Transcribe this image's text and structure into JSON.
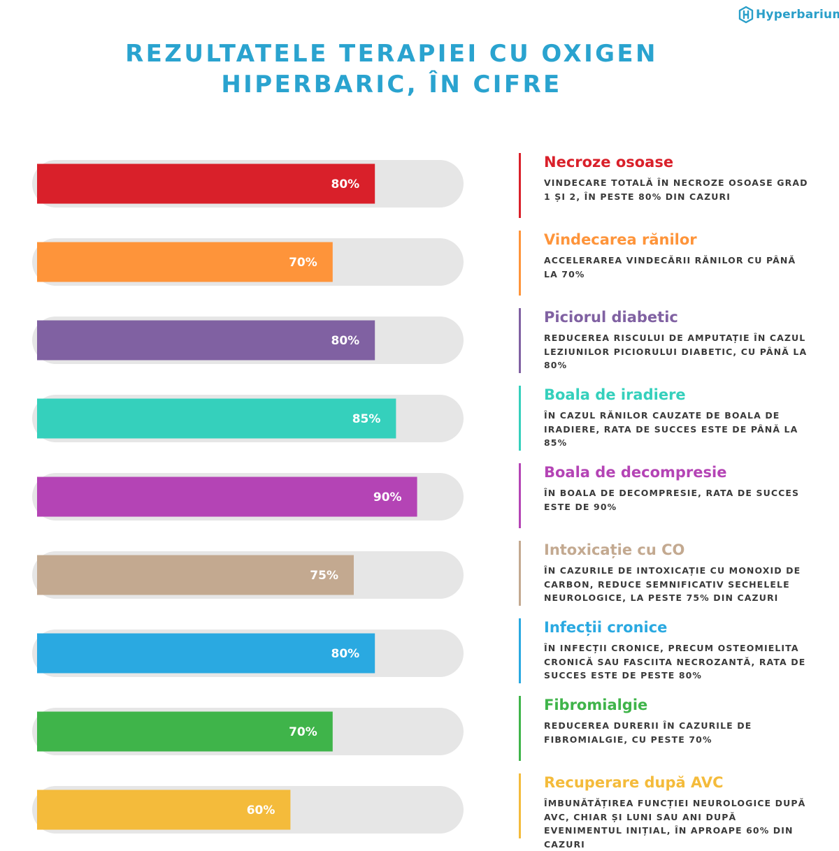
{
  "brand": {
    "name": "Hyperbarium",
    "color": "#2a9fc9"
  },
  "title_lines": [
    "REZULTATELE TERAPIEI CU OXIGEN",
    "HIPERBARIC, ÎN CIFRE"
  ],
  "chart_data": {
    "type": "bar",
    "orientation": "horizontal",
    "title": "REZULTATELE TERAPIEI CU OXIGEN HIPERBARIC, ÎN CIFRE",
    "xlim": [
      0,
      100
    ],
    "unit": "%",
    "categories": [
      "Necroze osoase",
      "Vindecarea rănilor",
      "Piciorul diabetic",
      "Boala de iradiere",
      "Boala de decompresie",
      "Intoxicație cu CO",
      "Infecții cronice",
      "Fibromialgie",
      "Recuperare după AVC"
    ],
    "values": [
      80,
      70,
      80,
      85,
      90,
      75,
      80,
      70,
      60
    ],
    "labels": [
      "80%",
      "70%",
      "80%",
      "85%",
      "90%",
      "75%",
      "80%",
      "70%",
      "60%"
    ],
    "colors": [
      "#d9202a",
      "#fe943a",
      "#8061a2",
      "#35d0bc",
      "#b444b5",
      "#c3a990",
      "#2aa9e1",
      "#3fb44a",
      "#f4bb3b"
    ],
    "track_color": "#e6e6e6"
  },
  "items": [
    {
      "heading": "Necroze osoase",
      "color": "#d9202a",
      "description": "VINDECARE TOTALĂ ÎN NECROZE OSOASE GRAD 1 ȘI 2, ÎN PESTE 80% DIN CAZURI"
    },
    {
      "heading": "Vindecarea rănilor",
      "color": "#fe943a",
      "description": "ACCELERAREA VINDECĂRII RĂNILOR CU PÂNĂ LA 70%"
    },
    {
      "heading": "Piciorul diabetic",
      "color": "#8061a2",
      "description": "REDUCEREA RISCULUI DE AMPUTAȚIE ÎN CAZUL LEZIUNILOR PICIORULUI DIABETIC, CU PÂNĂ LA 80%"
    },
    {
      "heading": "Boala de iradiere",
      "color": "#35d0bc",
      "description": "ÎN CAZUL RĂNILOR CAUZATE DE BOALA DE IRADIERE, RATA DE SUCCES ESTE DE PÂNĂ LA 85%"
    },
    {
      "heading": "Boala de decompresie",
      "color": "#b444b5",
      "description": "ÎN BOALA DE DECOMPRESIE, RATA DE SUCCES ESTE DE 90%"
    },
    {
      "heading": "Intoxicație cu CO",
      "color": "#c3a990",
      "description": "ÎN CAZURILE DE INTOXICAȚIE CU MONOXID DE CARBON, REDUCE SEMNIFICATIV SECHELELE NEUROLOGICE, LA PESTE 75% DIN CAZURI"
    },
    {
      "heading": "Infecții cronice",
      "color": "#2aa9e1",
      "description": "ÎN INFECȚII CRONICE, PRECUM OSTEOMIELITA CRONICĂ SAU FASCIITA NECROZANTĂ, RATA DE SUCCES ESTE DE PESTE 80%"
    },
    {
      "heading": "Fibromialgie",
      "color": "#3fb44a",
      "description": "REDUCEREA DURERII ÎN CAZURILE DE FIBROMIALGIE, CU PESTE 70%"
    },
    {
      "heading": "Recuperare după AVC",
      "color": "#f4bb3b",
      "description": "ÎMBUNĂTĂȚIREA FUNCȚIEI NEUROLOGICE DUPĂ AVC, CHIAR ȘI LUNI SAU ANI DUPĂ EVENIMENTUL INIȚIAL, ÎN APROAPE 60% DIN CAZURI"
    }
  ]
}
